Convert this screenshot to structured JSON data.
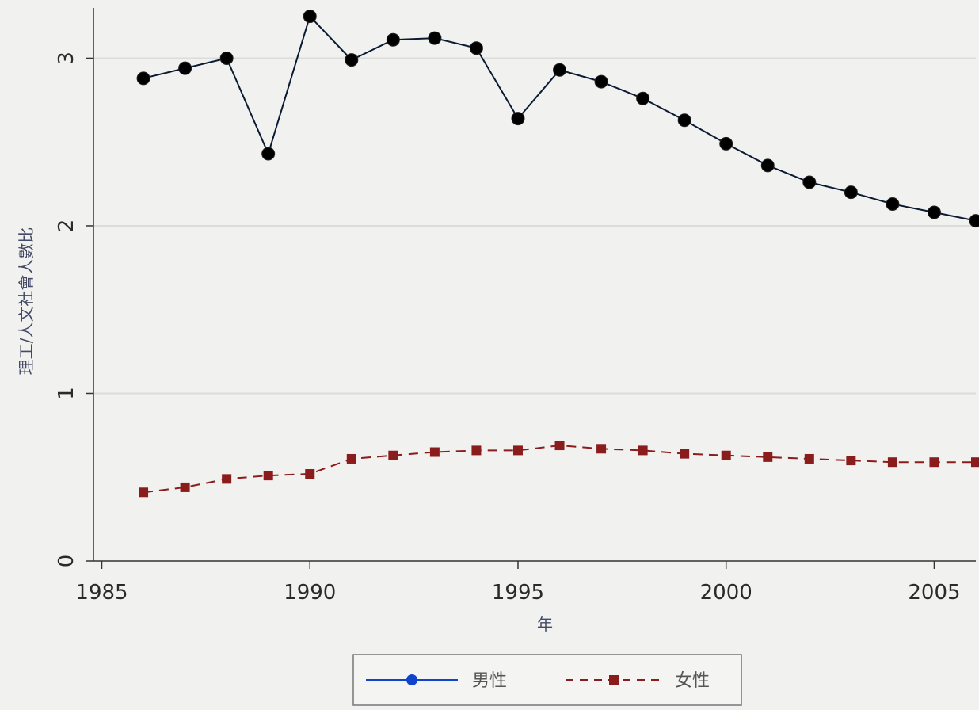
{
  "chart_data": {
    "type": "line",
    "xlabel": "年",
    "ylabel": "理工/人文社會人數比",
    "xlim": [
      1984.8,
      2006
    ],
    "ylim": [
      0,
      3.3
    ],
    "x_ticks": [
      1985,
      1990,
      1995,
      2000,
      2005
    ],
    "y_ticks": [
      0,
      1,
      2,
      3
    ],
    "grid": "horizontal",
    "legend_position": "bottom-center",
    "series": [
      {
        "name": "男性",
        "color": "#0b1a33",
        "legend_marker_color": "#1144cc",
        "marker": "circle",
        "line_style": "solid",
        "x": [
          1986,
          1987,
          1988,
          1989,
          1990,
          1991,
          1992,
          1993,
          1994,
          1995,
          1996,
          1997,
          1998,
          1999,
          2000,
          2001,
          2002,
          2003,
          2004,
          2005,
          2006
        ],
        "values": [
          2.88,
          2.94,
          3.0,
          2.43,
          3.25,
          2.99,
          3.11,
          3.12,
          3.06,
          2.64,
          2.93,
          2.86,
          2.76,
          2.63,
          2.49,
          2.36,
          2.26,
          2.2,
          2.13,
          2.08,
          2.03
        ]
      },
      {
        "name": "女性",
        "color": "#8b1c1c",
        "marker": "square",
        "line_style": "dashed",
        "x": [
          1986,
          1987,
          1988,
          1989,
          1990,
          1991,
          1992,
          1993,
          1994,
          1995,
          1996,
          1997,
          1998,
          1999,
          2000,
          2001,
          2002,
          2003,
          2004,
          2005,
          2006
        ],
        "values": [
          0.41,
          0.44,
          0.49,
          0.51,
          0.52,
          0.61,
          0.63,
          0.65,
          0.66,
          0.66,
          0.69,
          0.67,
          0.66,
          0.64,
          0.63,
          0.62,
          0.61,
          0.6,
          0.59,
          0.59,
          0.59
        ]
      }
    ]
  }
}
